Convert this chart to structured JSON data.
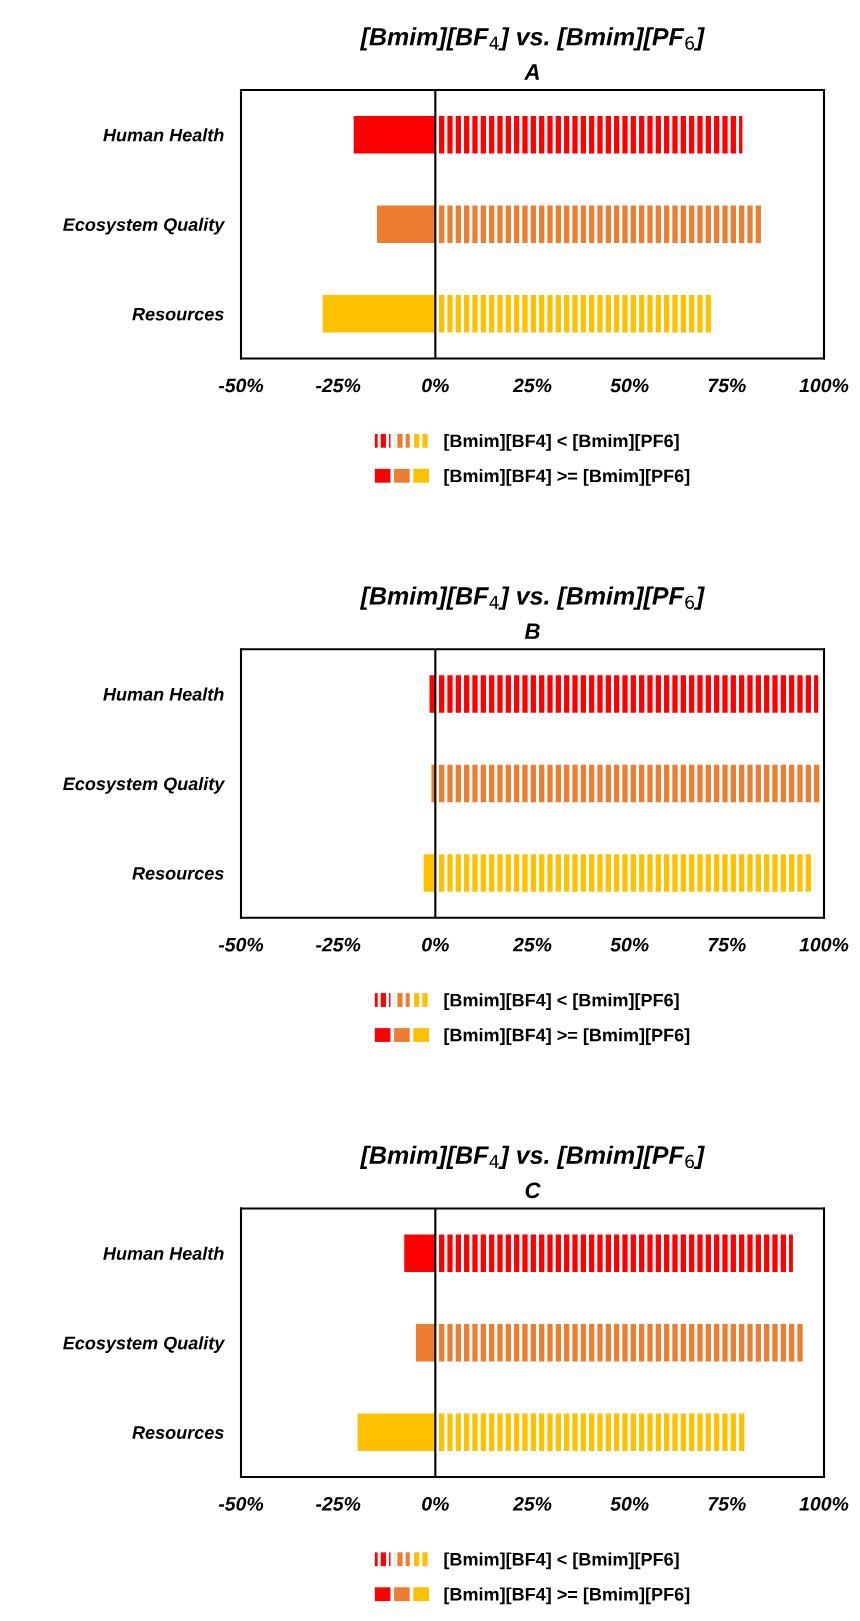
{
  "chart_data": [
    {
      "type": "bar",
      "orientation": "horizontal",
      "stacked": true,
      "title": "[Bmim][BF$_{4}$] vs. [Bmim][PF$_{6}$]",
      "subtitle": "A",
      "categories": [
        "Human Health",
        "Ecosystem Quality",
        "Resources"
      ],
      "series": [
        {
          "name": "[Bmim][BF4] < [Bmim][PF6]",
          "colors": [
            "#ff0000",
            "#ed7d31",
            "#ffc000"
          ],
          "values": [
            79,
            84.5,
            71
          ]
        },
        {
          "name": "[Bmim][BF4] >= [Bmim][PF6]",
          "colors": [
            "#ff0000",
            "#ed7d31",
            "#ffc000"
          ],
          "values": [
            -21,
            -15,
            -29
          ]
        }
      ],
      "xlim": [
        -50,
        100
      ],
      "xticks": [
        {
          "value": -50,
          "label": "-50%"
        },
        {
          "value": -25,
          "label": "-25%"
        },
        {
          "value": 0,
          "label": "0%"
        },
        {
          "value": 25,
          "label": "25%"
        },
        {
          "value": 50,
          "label": "50%"
        },
        {
          "value": 75,
          "label": "75%"
        },
        {
          "value": 100,
          "label": "100%"
        }
      ],
      "ref_lines": [
        {
          "axis": "x",
          "value": 0,
          "color": "#000000"
        }
      ],
      "grid": false,
      "legend": "bottom"
    },
    {
      "type": "bar",
      "orientation": "horizontal",
      "stacked": true,
      "title": "[Bmim][BF$_{4}$] vs. [Bmim][PF$_{6}$]",
      "subtitle": "B",
      "categories": [
        "Human Health",
        "Ecosystem Quality",
        "Resources"
      ],
      "series": [
        {
          "name": "[Bmim][BF4] < [Bmim][PF6]",
          "colors": [
            "#ff0000",
            "#ed7d31",
            "#ffc000"
          ],
          "values": [
            98.5,
            99,
            97.5
          ]
        },
        {
          "name": "[Bmim][BF4] >= [Bmim][PF6]",
          "colors": [
            "#ff0000",
            "#ed7d31",
            "#ffc000"
          ],
          "values": [
            -1.5,
            -1,
            -3
          ]
        }
      ],
      "xlim": [
        -50,
        100
      ],
      "xticks": [
        {
          "value": -50,
          "label": "-50%"
        },
        {
          "value": -25,
          "label": "-25%"
        },
        {
          "value": 0,
          "label": "0%"
        },
        {
          "value": 25,
          "label": "25%"
        },
        {
          "value": 50,
          "label": "50%"
        },
        {
          "value": 75,
          "label": "75%"
        },
        {
          "value": 100,
          "label": "100%"
        }
      ],
      "ref_lines": [
        {
          "axis": "x",
          "value": 0,
          "color": "#000000"
        }
      ],
      "grid": false,
      "legend": "bottom"
    },
    {
      "type": "bar",
      "orientation": "horizontal",
      "stacked": true,
      "title": "[Bmim][BF$_{4}$] vs. [Bmim][PF$_{6}$]",
      "subtitle": "C",
      "categories": [
        "Human Health",
        "Ecosystem Quality",
        "Resources"
      ],
      "series": [
        {
          "name": "[Bmim][BF4] < [Bmim][PF6]",
          "colors": [
            "#ff0000",
            "#ed7d31",
            "#ffc000"
          ],
          "values": [
            92,
            95,
            80
          ]
        },
        {
          "name": "[Bmim][BF4] >= [Bmim][PF6]",
          "colors": [
            "#ff0000",
            "#ed7d31",
            "#ffc000"
          ],
          "values": [
            -8,
            -5,
            -20
          ]
        }
      ],
      "xlim": [
        -50,
        100
      ],
      "xticks": [
        {
          "value": -50,
          "label": "-50%"
        },
        {
          "value": -25,
          "label": "-25%"
        },
        {
          "value": 0,
          "label": "0%"
        },
        {
          "value": 25,
          "label": "25%"
        },
        {
          "value": 50,
          "label": "50%"
        },
        {
          "value": 75,
          "label": "75%"
        },
        {
          "value": 100,
          "label": "100%"
        }
      ],
      "ref_lines": [
        {
          "axis": "x",
          "value": 0,
          "color": "#000000"
        }
      ],
      "grid": false,
      "legend": "bottom"
    }
  ]
}
